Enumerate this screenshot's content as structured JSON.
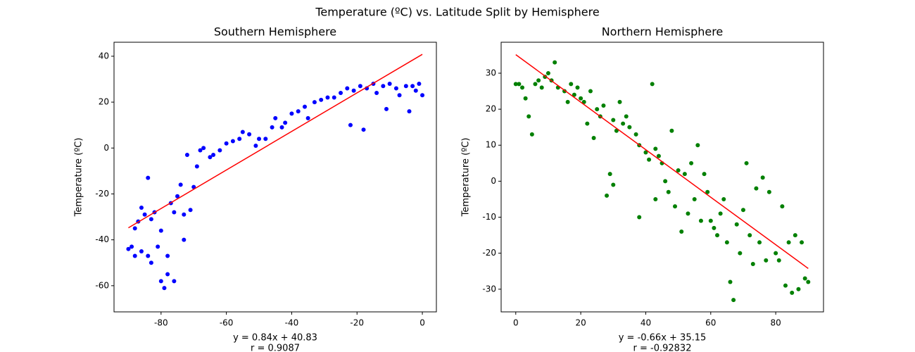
{
  "title": "Temperature (ºC) vs. Latitude Split by Hemisphere",
  "chart_data": [
    {
      "type": "scatter",
      "title": "Southern Hemisphere",
      "y_label": "Temperature (ºC)",
      "annotations": [
        "y = 0.84x + 40.83",
        "r = 0.9087"
      ],
      "annotation_color": "red",
      "xlim": [
        -94.4,
        4.3
      ],
      "ylim": [
        -71.4,
        46.1
      ],
      "xticks": [
        -80,
        -60,
        -40,
        -20,
        0
      ],
      "yticks": [
        -60,
        -40,
        -20,
        0,
        20,
        40
      ],
      "series": [
        {
          "type": "scatter",
          "color": "blue",
          "x": [
            -90,
            -89,
            -88,
            -88,
            -87,
            -86,
            -86,
            -85,
            -84,
            -84,
            -83,
            -83,
            -82,
            -81,
            -80,
            -80,
            -79,
            -78,
            -78,
            -77,
            -76,
            -76,
            -75,
            -74,
            -73,
            -73,
            -72,
            -71,
            -70,
            -69,
            -68,
            -67,
            -65,
            -64,
            -62,
            -60,
            -58,
            -56,
            -55,
            -53,
            -51,
            -50,
            -48,
            -46,
            -45,
            -43,
            -42,
            -40,
            -38,
            -36,
            -35,
            -33,
            -31,
            -29,
            -27,
            -25,
            -23,
            -22,
            -21,
            -19,
            -18,
            -17,
            -15,
            -14,
            -12,
            -11,
            -10,
            -8,
            -7,
            -5,
            -4,
            -3,
            -2,
            -1,
            0
          ],
          "values": [
            -44,
            -43,
            -47,
            -35,
            -32,
            -45,
            -26,
            -29,
            -47,
            -13,
            -31,
            -50,
            -28,
            -43,
            -58,
            -36,
            -61,
            -55,
            -47,
            -24,
            -58,
            -28,
            -21,
            -16,
            -29,
            -40,
            -3,
            -27,
            -17,
            -8,
            -1,
            0,
            -4,
            -3,
            -1,
            2,
            3,
            4,
            7,
            6,
            1,
            4,
            4,
            9,
            13,
            9,
            11,
            15,
            16,
            18,
            13,
            20,
            21,
            22,
            22,
            24,
            26,
            10,
            25,
            27,
            8,
            26,
            28,
            24,
            27,
            17,
            28,
            26,
            23,
            27,
            16,
            27,
            25,
            28,
            23
          ]
        },
        {
          "type": "line",
          "color": "red",
          "x": [
            -90,
            0
          ],
          "values": [
            -34.77,
            40.83
          ]
        }
      ]
    },
    {
      "type": "scatter",
      "title": "Northern Hemisphere",
      "y_label": "Temperature (ºC)",
      "annotations": [
        "y = -0.66x + 35.15",
        "r = -0.92832"
      ],
      "annotation_color": "red",
      "xlim": [
        -4.5,
        94.7
      ],
      "ylim": [
        -36.3,
        38.6
      ],
      "xticks": [
        0,
        20,
        40,
        60,
        80
      ],
      "yticks": [
        -30,
        -20,
        -10,
        0,
        10,
        20,
        30
      ],
      "series": [
        {
          "type": "scatter",
          "color": "green",
          "x": [
            0,
            1,
            2,
            3,
            4,
            5,
            6,
            7,
            8,
            9,
            10,
            11,
            12,
            13,
            15,
            16,
            17,
            18,
            19,
            20,
            21,
            22,
            23,
            24,
            25,
            26,
            27,
            28,
            29,
            30,
            30,
            31,
            32,
            33,
            34,
            35,
            37,
            38,
            38,
            40,
            41,
            42,
            43,
            43,
            44,
            45,
            46,
            47,
            48,
            49,
            50,
            51,
            52,
            53,
            54,
            55,
            56,
            57,
            58,
            59,
            60,
            61,
            62,
            63,
            64,
            65,
            66,
            67,
            68,
            69,
            70,
            71,
            72,
            73,
            74,
            75,
            76,
            77,
            78,
            80,
            81,
            82,
            83,
            84,
            85,
            86,
            87,
            88,
            89,
            90
          ],
          "values": [
            27,
            27,
            26,
            23,
            18,
            13,
            27,
            28,
            26,
            29,
            30,
            28,
            33,
            26,
            25,
            22,
            27,
            24,
            26,
            23,
            22,
            16,
            25,
            12,
            20,
            18,
            21,
            -4,
            2,
            -1,
            17,
            14,
            22,
            16,
            18,
            15,
            13,
            -10,
            10,
            8,
            6,
            27,
            -5,
            9,
            7,
            5,
            0,
            -3,
            14,
            -7,
            3,
            -14,
            2,
            -9,
            5,
            -5,
            10,
            -11,
            2,
            -3,
            -11,
            -13,
            -15,
            -9,
            -5,
            -17,
            -28,
            -33,
            -12,
            -20,
            -8,
            5,
            -15,
            -23,
            -2,
            -17,
            1,
            -22,
            -3,
            -20,
            -22,
            -7,
            -29,
            -17,
            -31,
            -15,
            -30,
            -17,
            -27,
            -28
          ]
        },
        {
          "type": "line",
          "color": "red",
          "x": [
            0,
            90
          ],
          "values": [
            35.15,
            -24.25
          ]
        }
      ]
    }
  ]
}
